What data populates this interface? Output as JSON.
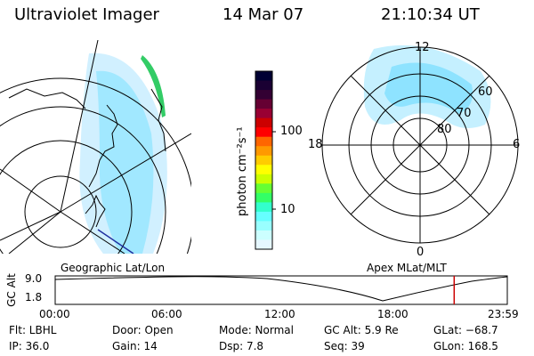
{
  "header": {
    "title": "Ultraviolet Imager",
    "date": "14 Mar 07",
    "time": "21:10:34 UT"
  },
  "colorbar": {
    "units": "photon cm⁻²s⁻¹",
    "ticks": [
      "100",
      "10"
    ],
    "colors_top_to_bottom": [
      "#000033",
      "#1a0033",
      "#330033",
      "#660033",
      "#990033",
      "#cc0000",
      "#ff0000",
      "#ff6600",
      "#ff9900",
      "#ffcc00",
      "#ffff00",
      "#ccff00",
      "#66ff33",
      "#33ff66",
      "#33ffcc",
      "#66ffff",
      "#99ffff",
      "#ccffff",
      "#e6f7ff"
    ]
  },
  "polar_plot": {
    "clock_labels": {
      "top": "12",
      "left": "18",
      "right": "6",
      "bottom": "0"
    },
    "latitude_labels": [
      "60",
      "70",
      "80"
    ]
  },
  "geographic_label": "Geographic Lat/Lon",
  "apex_label": "Apex MLat/MLT",
  "altitude_panel": {
    "ylabel": "GC Alt",
    "y_ticks": [
      "9.0",
      "1.8"
    ],
    "x_ticks": [
      "00:00",
      "06:00",
      "12:00",
      "18:00",
      "23:59"
    ],
    "current_marker_hour": 21.18,
    "marker_color": "#cc0000"
  },
  "info": {
    "row1": {
      "filter": "Flt: LBHL",
      "door": "Door: Open",
      "mode": "Mode: Normal",
      "gc_alt": "GC Alt: 5.9 Re",
      "glat": "GLat: −68.7"
    },
    "row2": {
      "ip": "IP: 36.0",
      "gain": "Gain: 14",
      "dsp": "Dsp:     7.8",
      "seq": "Seq: 39",
      "glon": "GLon: 168.5"
    }
  }
}
